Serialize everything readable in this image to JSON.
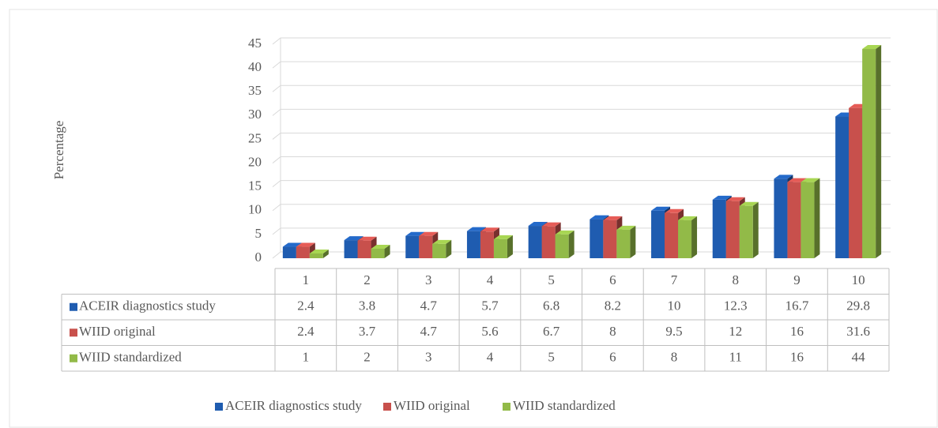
{
  "chart_data": {
    "type": "bar3d",
    "y_axis_label": "Percentage",
    "categories": [
      "1",
      "2",
      "3",
      "4",
      "5",
      "6",
      "7",
      "8",
      "9",
      "10"
    ],
    "series": [
      {
        "name": "ACEIR diagnostics study",
        "color": "#1f5cb0",
        "values": [
          2.4,
          3.8,
          4.7,
          5.7,
          6.8,
          8.2,
          10,
          12.3,
          16.7,
          29.8
        ]
      },
      {
        "name": "WIID original",
        "color": "#c8504c",
        "values": [
          2.4,
          3.7,
          4.7,
          5.6,
          6.7,
          8,
          9.5,
          12,
          16,
          31.6
        ]
      },
      {
        "name": "WIID standardized",
        "color": "#92ba48",
        "values": [
          1,
          2,
          3,
          4,
          5,
          6,
          8,
          11,
          16,
          44
        ]
      }
    ],
    "ylim": [
      0,
      45
    ],
    "yticks": [
      0,
      5,
      10,
      15,
      20,
      25,
      30,
      35,
      40,
      45
    ],
    "grid": true,
    "legend": "bottom"
  }
}
